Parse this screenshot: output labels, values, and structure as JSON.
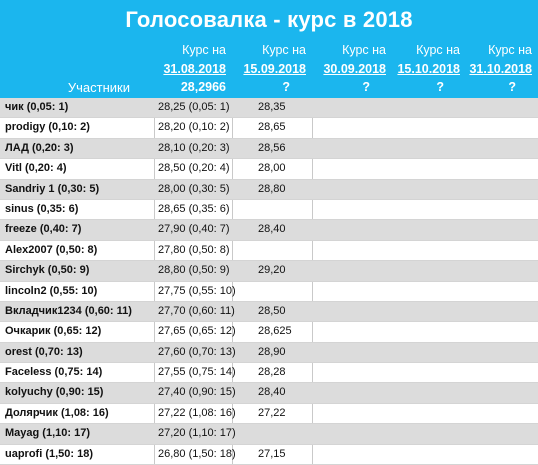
{
  "title": "Голосовалка - курс в 2018",
  "header": {
    "participants_label": "Участники",
    "columns": [
      {
        "line1": "Курс на",
        "line2": "31.08.2018",
        "line3": "28,2966"
      },
      {
        "line1": "Курс на",
        "line2": "15.09.2018",
        "line3": "?"
      },
      {
        "line1": "Курс на",
        "line2": "30.09.2018",
        "line3": "?"
      },
      {
        "line1": "Курс на",
        "line2": "15.10.2018",
        "line3": "?"
      },
      {
        "line1": "Курс на",
        "line2": "31.10.2018",
        "line3": "?"
      }
    ]
  },
  "rows": [
    {
      "name": "чик (0,05: 1)",
      "v1": "28,25 (0,05: 1)",
      "v2": "28,35"
    },
    {
      "name": "prodigy (0,10: 2)",
      "v1": "28,20 (0,10: 2)",
      "v2": "28,65"
    },
    {
      "name": "ЛАД (0,20: 3)",
      "v1": "28,10 (0,20: 3)",
      "v2": "28,56"
    },
    {
      "name": "Vitl (0,20: 4)",
      "v1": "28,50 (0,20: 4)",
      "v2": "28,00"
    },
    {
      "name": "Sandriy 1 (0,30: 5)",
      "v1": "28,00 (0,30: 5)",
      "v2": "28,80"
    },
    {
      "name": "sinus (0,35: 6)",
      "v1": "28,65 (0,35: 6)",
      "v2": ""
    },
    {
      "name": "freeze (0,40: 7)",
      "v1": "27,90 (0,40: 7)",
      "v2": "28,40"
    },
    {
      "name": "Alex2007 (0,50: 8)",
      "v1": "27,80 (0,50: 8)",
      "v2": ""
    },
    {
      "name": "Sirchyk (0,50: 9)",
      "v1": "28,80 (0,50: 9)",
      "v2": "29,20"
    },
    {
      "name": "lincoln2 (0,55: 10)",
      "v1": "27,75 (0,55: 10)",
      "v2": ""
    },
    {
      "name": "Вкладчик1234 (0,60: 11)",
      "v1": "27,70 (0,60: 11)",
      "v2": "28,50"
    },
    {
      "name": "Очкарик (0,65: 12)",
      "v1": "27,65 (0,65: 12)",
      "v2": "28,625"
    },
    {
      "name": "orest (0,70: 13)",
      "v1": "27,60 (0,70: 13)",
      "v2": "28,90"
    },
    {
      "name": "Faceless (0,75: 14)",
      "v1": "27,55 (0,75: 14)",
      "v2": "28,28"
    },
    {
      "name": "kolyuchy (0,90: 15)",
      "v1": "27,40 (0,90: 15)",
      "v2": "28,40"
    },
    {
      "name": "Долярчик (1,08: 16)",
      "v1": "27,22 (1,08: 16)",
      "v2": "27,22"
    },
    {
      "name": "Mayag (1,10: 17)",
      "v1": "27,20 (1,10: 17)",
      "v2": ""
    },
    {
      "name": "uaprofi (1,50: 18)",
      "v1": "26,80 (1,50: 18)",
      "v2": "27,15"
    }
  ]
}
